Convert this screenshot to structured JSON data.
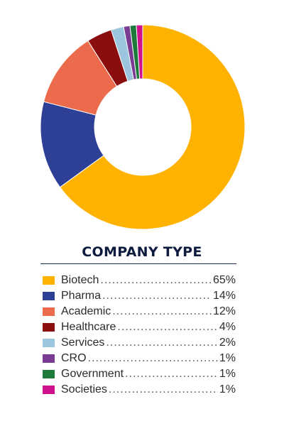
{
  "chart_data": {
    "type": "pie",
    "style": "donut",
    "title": "COMPANY TYPE",
    "legend_placement": "bottom",
    "categories": [
      "Biotech",
      "Pharma",
      "Academic",
      "Healthcare",
      "Services",
      "CRO",
      "Government",
      "Societies"
    ],
    "values": [
      65,
      14,
      12,
      4,
      2,
      1,
      1,
      1
    ],
    "value_labels": [
      "65%",
      "14%",
      "12%",
      "4%",
      "2%",
      "1%",
      "1%",
      "1%"
    ],
    "colors": [
      "#FFB300",
      "#2E3F96",
      "#EC6B4C",
      "#8B0E0E",
      "#9CC6DE",
      "#7A3C93",
      "#1E7A3A",
      "#D0108C"
    ]
  }
}
